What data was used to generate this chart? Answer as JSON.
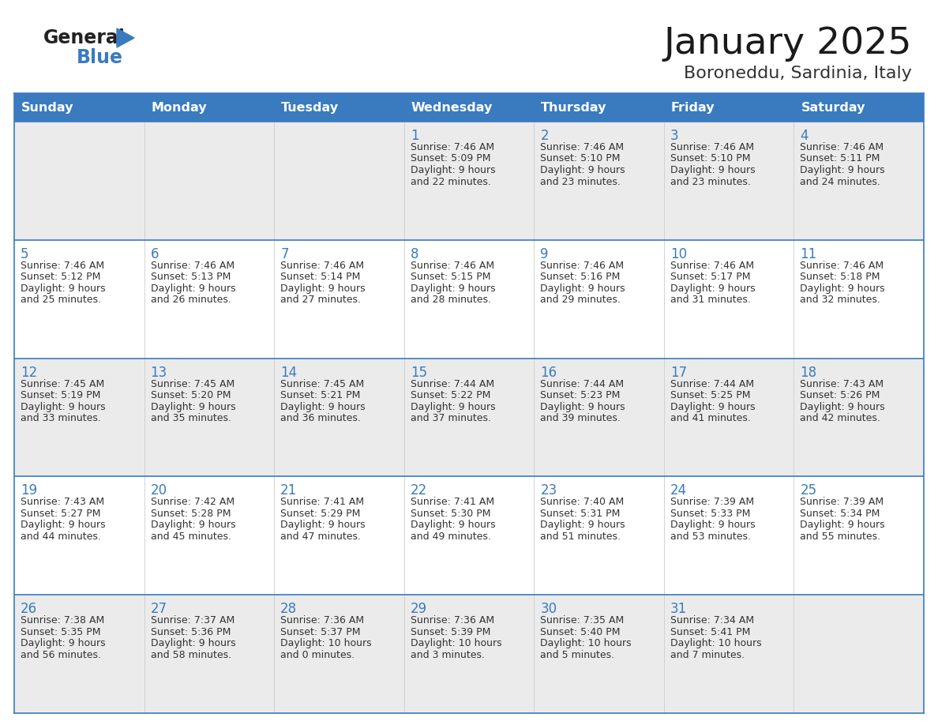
{
  "title": "January 2025",
  "subtitle": "Boroneddu, Sardinia, Italy",
  "header_color": "#3a7bbf",
  "header_text_color": "#FFFFFF",
  "cell_bg_even": "#ebebeb",
  "cell_bg_odd": "#FFFFFF",
  "day_number_color": "#3a7bbf",
  "text_color": "#333333",
  "border_color": "#3a7bbf",
  "days_of_week": [
    "Sunday",
    "Monday",
    "Tuesday",
    "Wednesday",
    "Thursday",
    "Friday",
    "Saturday"
  ],
  "calendar_data": [
    [
      {
        "day": "",
        "sunrise": "",
        "sunset": "",
        "daylight": ""
      },
      {
        "day": "",
        "sunrise": "",
        "sunset": "",
        "daylight": ""
      },
      {
        "day": "",
        "sunrise": "",
        "sunset": "",
        "daylight": ""
      },
      {
        "day": "1",
        "sunrise": "7:46 AM",
        "sunset": "5:09 PM",
        "daylight": "9 hours\nand 22 minutes."
      },
      {
        "day": "2",
        "sunrise": "7:46 AM",
        "sunset": "5:10 PM",
        "daylight": "9 hours\nand 23 minutes."
      },
      {
        "day": "3",
        "sunrise": "7:46 AM",
        "sunset": "5:10 PM",
        "daylight": "9 hours\nand 23 minutes."
      },
      {
        "day": "4",
        "sunrise": "7:46 AM",
        "sunset": "5:11 PM",
        "daylight": "9 hours\nand 24 minutes."
      }
    ],
    [
      {
        "day": "5",
        "sunrise": "7:46 AM",
        "sunset": "5:12 PM",
        "daylight": "9 hours\nand 25 minutes."
      },
      {
        "day": "6",
        "sunrise": "7:46 AM",
        "sunset": "5:13 PM",
        "daylight": "9 hours\nand 26 minutes."
      },
      {
        "day": "7",
        "sunrise": "7:46 AM",
        "sunset": "5:14 PM",
        "daylight": "9 hours\nand 27 minutes."
      },
      {
        "day": "8",
        "sunrise": "7:46 AM",
        "sunset": "5:15 PM",
        "daylight": "9 hours\nand 28 minutes."
      },
      {
        "day": "9",
        "sunrise": "7:46 AM",
        "sunset": "5:16 PM",
        "daylight": "9 hours\nand 29 minutes."
      },
      {
        "day": "10",
        "sunrise": "7:46 AM",
        "sunset": "5:17 PM",
        "daylight": "9 hours\nand 31 minutes."
      },
      {
        "day": "11",
        "sunrise": "7:46 AM",
        "sunset": "5:18 PM",
        "daylight": "9 hours\nand 32 minutes."
      }
    ],
    [
      {
        "day": "12",
        "sunrise": "7:45 AM",
        "sunset": "5:19 PM",
        "daylight": "9 hours\nand 33 minutes."
      },
      {
        "day": "13",
        "sunrise": "7:45 AM",
        "sunset": "5:20 PM",
        "daylight": "9 hours\nand 35 minutes."
      },
      {
        "day": "14",
        "sunrise": "7:45 AM",
        "sunset": "5:21 PM",
        "daylight": "9 hours\nand 36 minutes."
      },
      {
        "day": "15",
        "sunrise": "7:44 AM",
        "sunset": "5:22 PM",
        "daylight": "9 hours\nand 37 minutes."
      },
      {
        "day": "16",
        "sunrise": "7:44 AM",
        "sunset": "5:23 PM",
        "daylight": "9 hours\nand 39 minutes."
      },
      {
        "day": "17",
        "sunrise": "7:44 AM",
        "sunset": "5:25 PM",
        "daylight": "9 hours\nand 41 minutes."
      },
      {
        "day": "18",
        "sunrise": "7:43 AM",
        "sunset": "5:26 PM",
        "daylight": "9 hours\nand 42 minutes."
      }
    ],
    [
      {
        "day": "19",
        "sunrise": "7:43 AM",
        "sunset": "5:27 PM",
        "daylight": "9 hours\nand 44 minutes."
      },
      {
        "day": "20",
        "sunrise": "7:42 AM",
        "sunset": "5:28 PM",
        "daylight": "9 hours\nand 45 minutes."
      },
      {
        "day": "21",
        "sunrise": "7:41 AM",
        "sunset": "5:29 PM",
        "daylight": "9 hours\nand 47 minutes."
      },
      {
        "day": "22",
        "sunrise": "7:41 AM",
        "sunset": "5:30 PM",
        "daylight": "9 hours\nand 49 minutes."
      },
      {
        "day": "23",
        "sunrise": "7:40 AM",
        "sunset": "5:31 PM",
        "daylight": "9 hours\nand 51 minutes."
      },
      {
        "day": "24",
        "sunrise": "7:39 AM",
        "sunset": "5:33 PM",
        "daylight": "9 hours\nand 53 minutes."
      },
      {
        "day": "25",
        "sunrise": "7:39 AM",
        "sunset": "5:34 PM",
        "daylight": "9 hours\nand 55 minutes."
      }
    ],
    [
      {
        "day": "26",
        "sunrise": "7:38 AM",
        "sunset": "5:35 PM",
        "daylight": "9 hours\nand 56 minutes."
      },
      {
        "day": "27",
        "sunrise": "7:37 AM",
        "sunset": "5:36 PM",
        "daylight": "9 hours\nand 58 minutes."
      },
      {
        "day": "28",
        "sunrise": "7:36 AM",
        "sunset": "5:37 PM",
        "daylight": "10 hours\nand 0 minutes."
      },
      {
        "day": "29",
        "sunrise": "7:36 AM",
        "sunset": "5:39 PM",
        "daylight": "10 hours\nand 3 minutes."
      },
      {
        "day": "30",
        "sunrise": "7:35 AM",
        "sunset": "5:40 PM",
        "daylight": "10 hours\nand 5 minutes."
      },
      {
        "day": "31",
        "sunrise": "7:34 AM",
        "sunset": "5:41 PM",
        "daylight": "10 hours\nand 7 minutes."
      },
      {
        "day": "",
        "sunrise": "",
        "sunset": "",
        "daylight": ""
      }
    ]
  ]
}
